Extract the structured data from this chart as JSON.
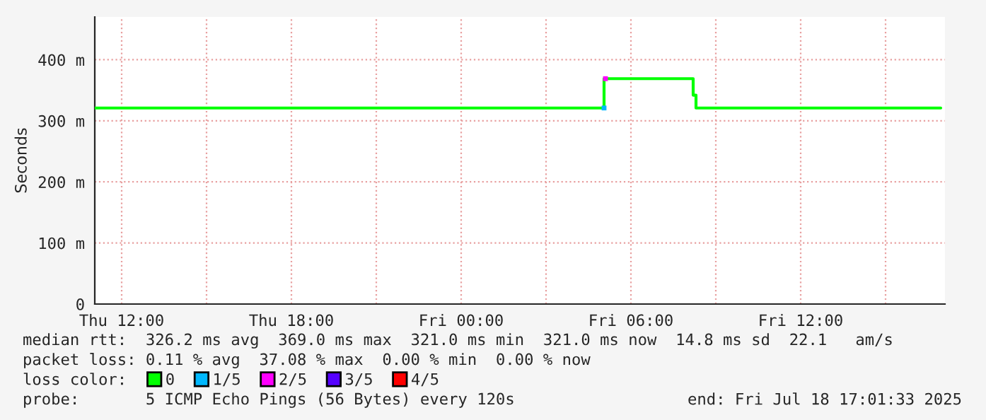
{
  "chart_data": {
    "type": "step",
    "ylabel": "Seconds",
    "legend_title": "loss color:",
    "x": [
      "2025-07-17T11:03",
      "2025-07-18T05:03",
      "2025-07-18T08:12",
      "2025-07-18T08:18",
      "2025-07-18T16:57"
    ],
    "xlim": [
      "2025-07-17T11:03",
      "2025-07-18T17:06"
    ],
    "xticks": [
      {
        "value": "2025-07-17T12:00",
        "label": "Thu 12:00"
      },
      {
        "value": "2025-07-17T15:00",
        "label": null
      },
      {
        "value": "2025-07-17T18:00",
        "label": "Thu 18:00"
      },
      {
        "value": "2025-07-17T21:00",
        "label": null
      },
      {
        "value": "2025-07-18T00:00",
        "label": "Fri 00:00"
      },
      {
        "value": "2025-07-18T03:00",
        "label": null
      },
      {
        "value": "2025-07-18T06:00",
        "label": "Fri 06:00"
      },
      {
        "value": "2025-07-18T09:00",
        "label": null
      },
      {
        "value": "2025-07-18T12:00",
        "label": "Fri 12:00"
      },
      {
        "value": "2025-07-18T15:00",
        "label": null
      }
    ],
    "ylim": [
      0,
      470
    ],
    "yticks": [
      {
        "value": 0,
        "label": "0"
      },
      {
        "value": 100,
        "label": "100 m"
      },
      {
        "value": 200,
        "label": "200 m"
      },
      {
        "value": 300,
        "label": "300 m"
      },
      {
        "value": 400,
        "label": "400 m"
      }
    ],
    "grid": true,
    "legend": "bottom",
    "series": [
      {
        "name": "0",
        "color": "#00ff00",
        "values": [
          321,
          369,
          342,
          321,
          321
        ]
      },
      {
        "name": "1/5",
        "color": "#00b8ff",
        "type": "scatter",
        "marker": "square",
        "x": [
          "2025-07-18T05:03"
        ],
        "values": [
          321
        ]
      },
      {
        "name": "2/5",
        "color": "#ff00ff",
        "type": "scatter",
        "marker": "square",
        "x": [
          "2025-07-18T05:06"
        ],
        "values": [
          369
        ]
      },
      {
        "name": "3/5",
        "color": "#5500ff",
        "type": "scatter",
        "marker": "square",
        "values": [
          null,
          null,
          null,
          null,
          null
        ]
      },
      {
        "name": "4/5",
        "color": "#ff0000",
        "type": "scatter",
        "marker": "square",
        "values": [
          null,
          null,
          null,
          null,
          null
        ]
      }
    ],
    "annotations": [
      "median rtt:  326.2 ms avg  369.0 ms max  321.0 ms min  321.0 ms now  14.8 ms sd  22.1   am/s",
      "packet loss: 0.11 % avg  37.08 % max  0.00 % min  0.00 % now",
      "probe:       5 ICMP Echo Pings (56 Bytes) every 120s",
      "end: Fri Jul 18 17:01:33 2025"
    ]
  }
}
